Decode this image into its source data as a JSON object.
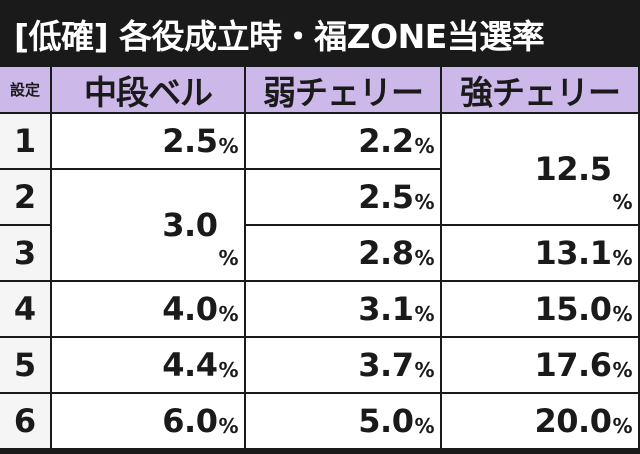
{
  "title": "[低確] 各役成立時・福ZONE当選率",
  "headers": {
    "setting": "設定",
    "col1": "中段ベル",
    "col2": "弱チェリー",
    "col3": "強チェリー"
  },
  "unit": "%",
  "rows": [
    {
      "setting": "1",
      "chudan_bell": "2.5",
      "jaku_cherry": "2.2",
      "kyo_cherry": "12.5"
    },
    {
      "setting": "2",
      "chudan_bell": "3.0",
      "jaku_cherry": "2.5",
      "kyo_cherry": "12.5"
    },
    {
      "setting": "3",
      "chudan_bell": "3.0",
      "jaku_cherry": "2.8",
      "kyo_cherry": "13.1"
    },
    {
      "setting": "4",
      "chudan_bell": "4.0",
      "jaku_cherry": "3.1",
      "kyo_cherry": "15.0"
    },
    {
      "setting": "5",
      "chudan_bell": "4.4",
      "jaku_cherry": "3.7",
      "kyo_cherry": "17.6"
    },
    {
      "setting": "6",
      "chudan_bell": "6.0",
      "jaku_cherry": "5.0",
      "kyo_cherry": "20.0"
    }
  ],
  "colors": {
    "header_bg": "#cdb8ea",
    "title_bg": "#1a1a1a",
    "title_text": "#ffffff",
    "cell_bg": "#ffffff",
    "setting_bg": "#f5f5f5"
  }
}
